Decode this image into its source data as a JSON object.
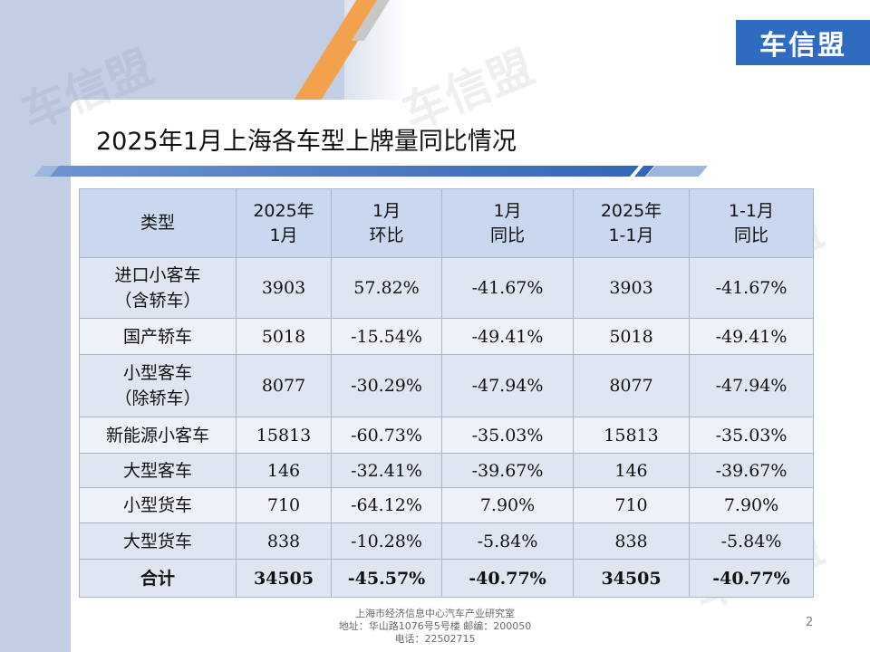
{
  "brand": {
    "logo_text": "车信盟",
    "watermark_text": "车信盟",
    "accent_color": "#2d6cc0"
  },
  "title": "2025年1月上海各车型上牌量同比情况",
  "table": {
    "headers": [
      [
        "类型"
      ],
      [
        "2025年",
        "1月"
      ],
      [
        "1月",
        "环比"
      ],
      [
        "1月",
        "同比"
      ],
      [
        "2025年",
        "1-1月"
      ],
      [
        "1-1月",
        "同比"
      ]
    ],
    "rows": [
      {
        "name": [
          "进口小客车",
          "（含轿车）"
        ],
        "values": [
          "3903",
          "57.82%",
          "-41.67%",
          "3903",
          "-41.67%"
        ]
      },
      {
        "name": [
          "国产轿车"
        ],
        "values": [
          "5018",
          "-15.54%",
          "-49.41%",
          "5018",
          "-49.41%"
        ]
      },
      {
        "name": [
          "小型客车",
          "（除轿车）"
        ],
        "values": [
          "8077",
          "-30.29%",
          "-47.94%",
          "8077",
          "-47.94%"
        ]
      },
      {
        "name": [
          "新能源小客车"
        ],
        "values": [
          "15813",
          "-60.73%",
          "-35.03%",
          "15813",
          "-35.03%"
        ]
      },
      {
        "name": [
          "大型客车"
        ],
        "values": [
          "146",
          "-32.41%",
          "-39.67%",
          "146",
          "-39.67%"
        ]
      },
      {
        "name": [
          "小型货车"
        ],
        "values": [
          "710",
          "-64.12%",
          "7.90%",
          "710",
          "7.90%"
        ]
      },
      {
        "name": [
          "大型货车"
        ],
        "values": [
          "838",
          "-10.28%",
          "-5.84%",
          "838",
          "-5.84%"
        ]
      }
    ],
    "total": {
      "name": "合计",
      "values": [
        "34505",
        "-45.57%",
        "-40.77%",
        "34505",
        "-40.77%"
      ]
    }
  },
  "footer": {
    "line1": "上海市经济信息中心汽车产业研究室",
    "line2": "地址：华山路1076号5号楼    邮编：200050",
    "line3": "电话：22502715"
  },
  "page_number": "2"
}
